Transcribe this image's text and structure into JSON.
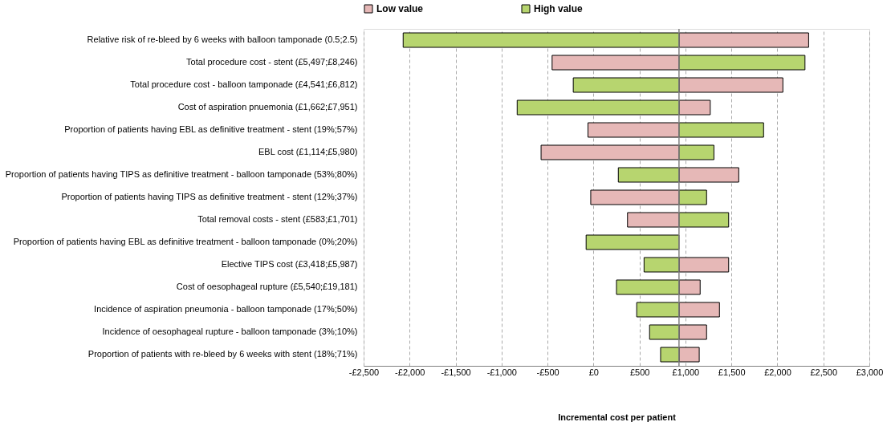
{
  "chart_data": {
    "type": "bar",
    "orientation": "horizontal",
    "xlabel": "Incremental cost per patient",
    "categories": [
      "Relative risk of re-bleed by 6 weeks with balloon tamponade (0.5;2.5)",
      "Total procedure cost - stent (£5,497;£8,246)",
      "Total procedure cost - balloon tamponade (£4,541;£6,812)",
      "Cost of aspiration pnuemonia (£1,662;£7,951)",
      "Proportion of patients having EBL as definitive treatment - stent (19%;57%)",
      "EBL cost (£1,114;£5,980)",
      "Proportion of patients having TIPS as definitive treatment - balloon tamponade (53%;80%)",
      "Proportion of patients having TIPS as definitive treatment - stent (12%;37%)",
      "Total removal costs - stent (£583;£1,701)",
      "Proportion of patients having EBL as definitive treatment - balloon tamponade (0%;20%)",
      "Elective TIPS cost (£3,418;£5,987)",
      "Cost of oesophageal rupture (£5,540;£19,181)",
      "Incidence of aspiration pneumonia - balloon tamponade (17%;50%)",
      "Incidence of oesophageal rupture - balloon tamponade (3%;10%)",
      "Proportion of patients with re-bleed by 6 weeks with stent (18%;71%)"
    ],
    "series": [
      {
        "name": "Low value",
        "color": "#e6b8b7",
        "base": [
          930,
          930,
          930,
          930,
          930,
          930,
          930,
          930,
          930,
          null,
          930,
          930,
          930,
          930,
          930
        ],
        "values": [
          1410,
          -1380,
          1130,
          340,
          -990,
          -1500,
          650,
          -960,
          -560,
          null,
          540,
          230,
          440,
          300,
          220
        ]
      },
      {
        "name": "High value",
        "color": "#b7d56f",
        "base": [
          930,
          930,
          930,
          930,
          930,
          930,
          930,
          930,
          930,
          930,
          930,
          930,
          930,
          930,
          930
        ],
        "values": [
          -3000,
          1370,
          -1150,
          -1760,
          920,
          380,
          -660,
          300,
          540,
          -1010,
          -380,
          -680,
          -460,
          -320,
          -200
        ]
      }
    ],
    "xlim": [
      -2500,
      3000
    ],
    "xticks": [
      {
        "value": -2500,
        "label": "-£2,500"
      },
      {
        "value": -2000,
        "label": "-£2,000"
      },
      {
        "value": -1500,
        "label": "-£1,500"
      },
      {
        "value": -1000,
        "label": "-£1,000"
      },
      {
        "value": -500,
        "label": "-£500"
      },
      {
        "value": 0,
        "label": "£0"
      },
      {
        "value": 500,
        "label": "£500"
      },
      {
        "value": 1000,
        "label": "£1,000"
      },
      {
        "value": 1500,
        "label": "£1,500"
      },
      {
        "value": 2000,
        "label": "£2,000"
      },
      {
        "value": 2500,
        "label": "£2,500"
      },
      {
        "value": 3000,
        "label": "£3,000"
      }
    ],
    "ref_lines": [
      {
        "axis": "x",
        "value": 930,
        "color": "#808080"
      }
    ],
    "grid": "x",
    "legend": "top"
  }
}
